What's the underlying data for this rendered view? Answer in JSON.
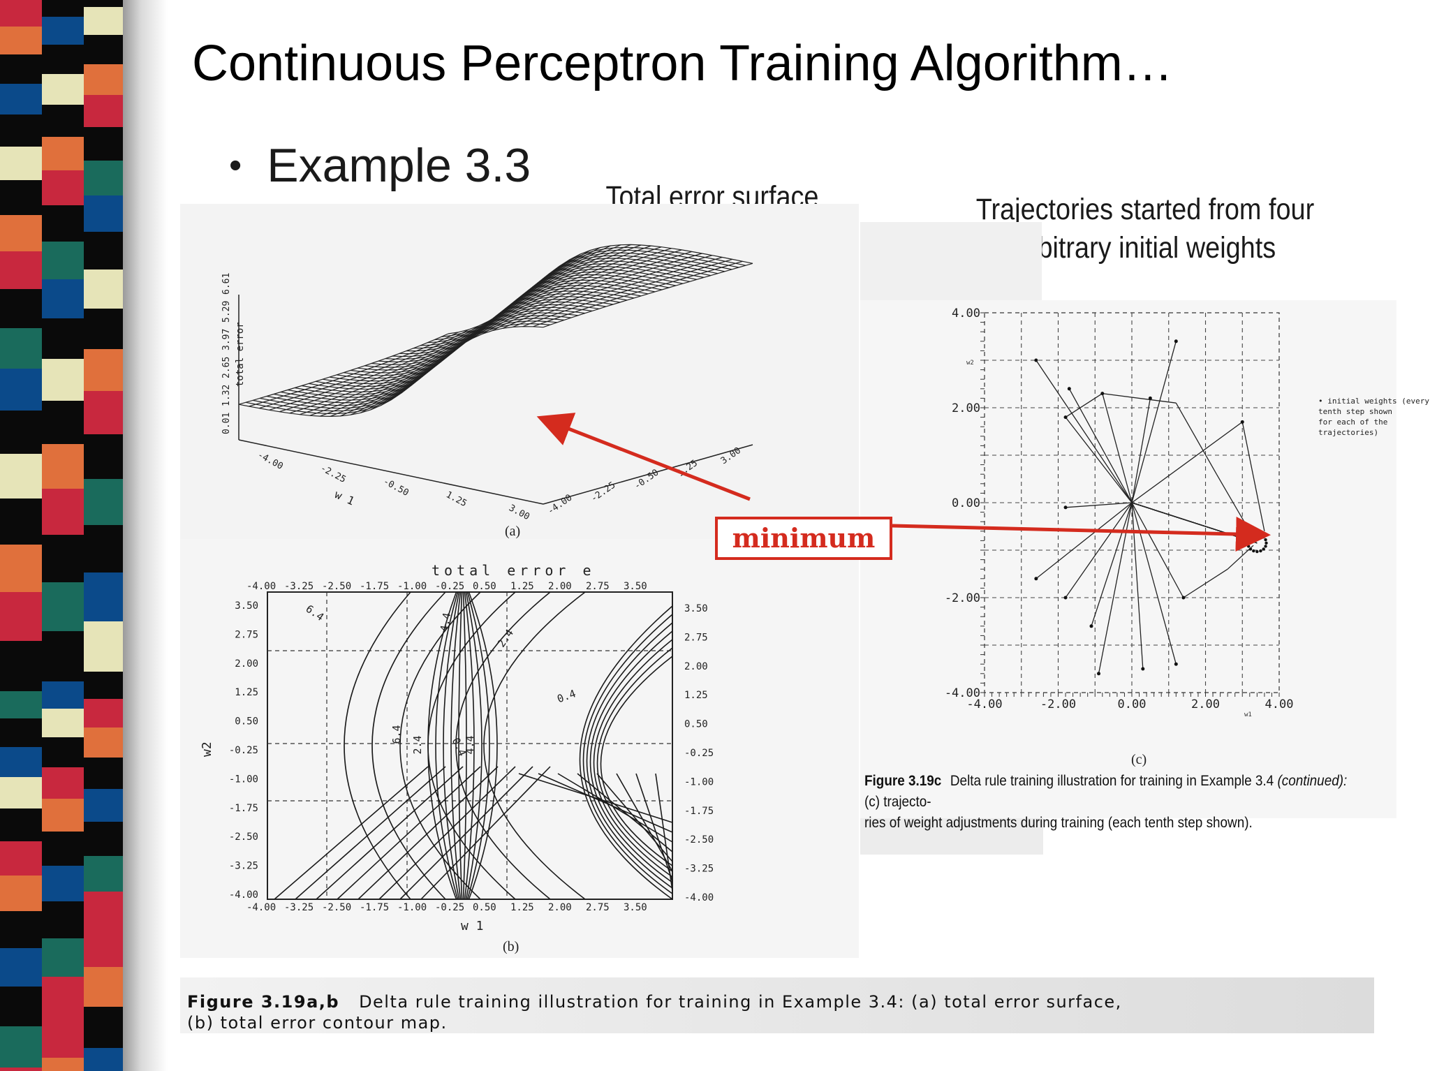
{
  "slide": {
    "title": "Continuous Perceptron Training Algorithm…",
    "bullet": "Example 3.3",
    "captions": {
      "surface": "Total error surface",
      "trajectories_line1": "Trajectories started from four",
      "trajectories_line2": "arbitrary initial weights"
    },
    "callout": "minimum",
    "accent_color": "#d42b1e",
    "stripe_colors": [
      "#c8283e",
      "#e0703c",
      "#0a0a0a",
      "#0b4a8a",
      "#e6e4b8",
      "#1a6b5c"
    ]
  },
  "figure_a": {
    "sublabel": "(a)",
    "z_label": "total error",
    "z_ticks": [
      "0.01",
      "1.32",
      "2.65",
      "3.97",
      "5.29",
      "6.61"
    ],
    "w1_label": "w 1",
    "w1_ticks": [
      "-4.00",
      "-2.25",
      "-0.50",
      "1.25",
      "3.00"
    ],
    "w2_ticks": [
      "-4.00",
      "-2.25",
      "-0.50",
      "1.25",
      "3.00"
    ]
  },
  "figure_b": {
    "sublabel": "(b)",
    "title": "total error e",
    "xlabel": "w 1",
    "ylabel": "w2",
    "x_ticks": [
      "-4.00",
      "-3.25",
      "-2.50",
      "-1.75",
      "-1.00",
      "-0.25",
      "0.50",
      "1.25",
      "2.00",
      "2.75",
      "3.50"
    ],
    "y_ticks_left": [
      "3.50",
      "2.75",
      "2.00",
      "1.25",
      "0.50",
      "-0.25",
      "-1.00",
      "-1.75",
      "-2.50",
      "-3.25",
      "-4.00"
    ],
    "y_ticks_right": [
      "3.50",
      "2.75",
      "2.00",
      "1.25",
      "0.50",
      "-0.25",
      "-1.00",
      "-1.75",
      "-2.50",
      "-3.25",
      "-4.00"
    ],
    "contour_labels": [
      "6.4",
      "4.4",
      "2.4",
      "0.4",
      "6.4",
      "4.4",
      "2.4",
      "0.4"
    ]
  },
  "figure_c": {
    "sublabel": "(c)",
    "xlabel": "w1",
    "ylabel": "w2",
    "x_ticks": [
      "-4.00",
      "-2.00",
      "0.00",
      "2.00",
      "4.00"
    ],
    "y_ticks": [
      "4.00",
      "2.00",
      "0.00",
      "-2.00",
      "-4.00"
    ],
    "legend": [
      "• initial weights (every",
      "tenth step shown",
      "for each of the",
      "trajectories)"
    ],
    "caption_label": "Figure 3.19c",
    "caption_text": "Delta rule training illustration for training in Example 3.4",
    "caption_italic": "(continued):",
    "caption_rest_1": "(c) trajecto-",
    "caption_rest_2": "ries of weight adjustments during training (each tenth step shown)."
  },
  "caption_ab": {
    "label": "Figure 3.19a,b",
    "line1": "Delta rule training illustration for training in Example 3.4: (a) total error surface,",
    "line2": "(b) total error contour map."
  }
}
